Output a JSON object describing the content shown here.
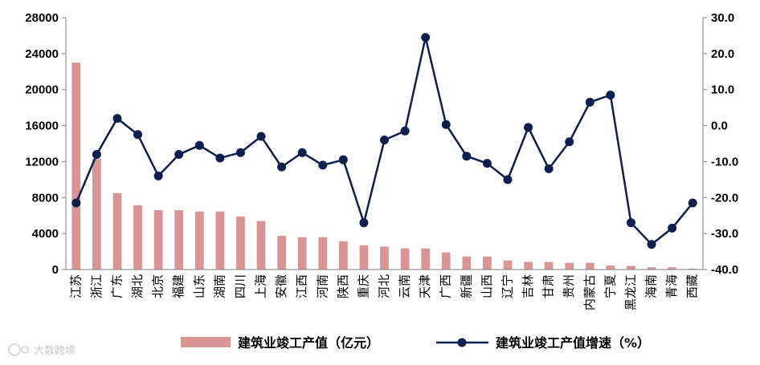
{
  "watermark": "大数跨境",
  "chart_data": {
    "type": "bar",
    "categories": [
      "江苏",
      "浙江",
      "广东",
      "湖北",
      "北京",
      "福建",
      "山东",
      "湖南",
      "四川",
      "上海",
      "安徽",
      "江西",
      "河南",
      "陕西",
      "重庆",
      "河北",
      "云南",
      "天津",
      "广西",
      "新疆",
      "山西",
      "辽宁",
      "吉林",
      "甘肃",
      "贵州",
      "内蒙古",
      "宁夏",
      "黑龙江",
      "海南",
      "青海",
      "西藏"
    ],
    "ylim_left": [
      0,
      28000
    ],
    "yticks_left": [
      "0",
      "4000",
      "8000",
      "12000",
      "16000",
      "20000",
      "24000",
      "28000"
    ],
    "ylim_right": [
      -40,
      30
    ],
    "yticks_right": [
      "-40.0",
      "-30.0",
      "-20.0",
      "-10.0",
      "0.0",
      "10.0",
      "20.0",
      "30.0"
    ],
    "series": [
      {
        "name": "建筑业竣工产值（亿元）",
        "type": "bar",
        "axis": "left",
        "color": "#d99594",
        "values": [
          23000,
          12300,
          8500,
          7150,
          6600,
          6600,
          6450,
          6450,
          5900,
          5400,
          3750,
          3600,
          3600,
          3150,
          2700,
          2550,
          2350,
          2350,
          1900,
          1450,
          1450,
          1000,
          850,
          850,
          750,
          750,
          450,
          400,
          250,
          250,
          100
        ]
      },
      {
        "name": "建筑业竣工产值增速（%）",
        "type": "line",
        "axis": "right",
        "color": "#0d1f4e",
        "values": [
          -21.5,
          -8.0,
          2.0,
          -2.5,
          -14.0,
          -8.0,
          -5.5,
          -9.0,
          -7.5,
          -3.0,
          -11.5,
          -7.5,
          -11.0,
          -9.5,
          -27.0,
          -4.0,
          -1.5,
          24.5,
          0.3,
          -8.5,
          -10.5,
          -15.0,
          -0.5,
          -12.0,
          -4.5,
          6.5,
          8.5,
          -27.0,
          -33.0,
          -28.5,
          -21.5
        ]
      }
    ],
    "grid": false,
    "legend": "bottom"
  }
}
